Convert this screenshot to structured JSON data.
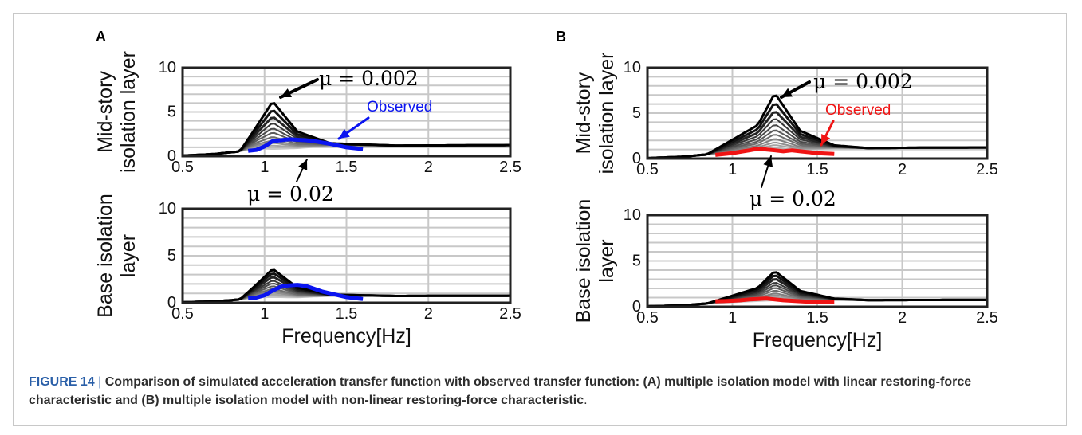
{
  "caption": {
    "label": "FIGURE 14",
    "text": "Comparison of simulated acceleration transfer function with observed transfer function: (A) multiple isolation model with linear restoring-force characteristic and (B) multiple isolation model with non-linear restoring-force characteristic",
    "end": "."
  },
  "colors": {
    "simulated_dark": "#000000",
    "simulated_light": "#c8c8c8",
    "observed_A": "#0a14f0",
    "observed_B": "#f01414",
    "grid": "#c8c8c8"
  },
  "annotations": {
    "mu_high": "μ = 0.002",
    "mu_low": "μ = 0.02",
    "observed": "Observed"
  },
  "chart_data": [
    {
      "id": "A-mid",
      "panel_label": "A",
      "type": "line",
      "ylabel": [
        "Mid-story",
        "isolation layer"
      ],
      "xlabel": "",
      "xlim": [
        0.5,
        2.5
      ],
      "ylim": [
        0,
        10
      ],
      "xticks": [
        "0.5",
        "1",
        "1.5",
        "2",
        "2.5"
      ],
      "yticks": [
        "0",
        "5",
        "10"
      ],
      "grid": true,
      "peak_freq": 1.05,
      "peaks": [
        6.2,
        5.3,
        4.5,
        3.8,
        3.2,
        2.7,
        2.2,
        1.8,
        1.5,
        1.2,
        1.0,
        0.8
      ],
      "tail": [
        0.06,
        0.25,
        0.55,
        0.95,
        1.1,
        1.15,
        1.2,
        1.22,
        1.25
      ],
      "observed": {
        "name": "Observed",
        "x": [
          0.9,
          0.95,
          1.0,
          1.05,
          1.1,
          1.15,
          1.2,
          1.25,
          1.3,
          1.35,
          1.4,
          1.45,
          1.5,
          1.55,
          1.6
        ],
        "y": [
          0.6,
          0.7,
          1.1,
          1.7,
          1.8,
          1.9,
          1.85,
          1.8,
          1.7,
          1.55,
          1.4,
          1.2,
          1.0,
          0.9,
          0.8
        ]
      }
    },
    {
      "id": "A-base",
      "panel_label": "",
      "type": "line",
      "ylabel": [
        "Base isolation",
        "layer"
      ],
      "xlabel": "Frequency[Hz]",
      "xlim": [
        0.5,
        2.5
      ],
      "ylim": [
        0,
        10
      ],
      "xticks": [
        "0.5",
        "1",
        "1.5",
        "2",
        "2.5"
      ],
      "yticks": [
        "0",
        "5",
        "10"
      ],
      "grid": true,
      "peak_freq": 1.05,
      "peaks": [
        3.6,
        3.2,
        2.8,
        2.4,
        2.1,
        1.8,
        1.5,
        1.3,
        1.1,
        0.9,
        0.75,
        0.6
      ],
      "tail": [
        0.05,
        0.15,
        0.35,
        0.55,
        0.65,
        0.7,
        0.72,
        0.74,
        0.75
      ],
      "observed": {
        "name": "Observed",
        "x": [
          0.9,
          0.95,
          1.0,
          1.05,
          1.1,
          1.15,
          1.2,
          1.25,
          1.3,
          1.35,
          1.4,
          1.45,
          1.5,
          1.55,
          1.6
        ],
        "y": [
          0.5,
          0.55,
          0.8,
          1.3,
          1.7,
          1.85,
          1.9,
          1.8,
          1.5,
          1.2,
          1.0,
          0.8,
          0.6,
          0.5,
          0.4
        ]
      }
    },
    {
      "id": "B-mid",
      "panel_label": "B",
      "type": "line",
      "ylabel": [
        "Mid-story",
        "isolation layer"
      ],
      "xlabel": "",
      "xlim": [
        0.5,
        2.5
      ],
      "ylim": [
        0,
        10
      ],
      "xticks": [
        "0.5",
        "1",
        "1.5",
        "2",
        "2.5"
      ],
      "yticks": [
        "0",
        "5",
        "10"
      ],
      "grid": true,
      "peak_freq": 1.25,
      "peaks": [
        7.2,
        6.2,
        5.3,
        4.5,
        3.8,
        3.2,
        2.7,
        2.2,
        1.8,
        1.5,
        1.2,
        1.0
      ],
      "tail": [
        0.05,
        0.2,
        0.45,
        0.8,
        1.0,
        1.1,
        1.15,
        1.2,
        1.22
      ],
      "observed": {
        "name": "Observed",
        "x": [
          0.9,
          0.95,
          1.0,
          1.05,
          1.1,
          1.15,
          1.2,
          1.25,
          1.3,
          1.35,
          1.4,
          1.45,
          1.5,
          1.55,
          1.6
        ],
        "y": [
          0.4,
          0.5,
          0.6,
          0.75,
          0.9,
          1.1,
          1.0,
          0.9,
          0.8,
          0.9,
          0.8,
          0.7,
          0.6,
          0.55,
          0.5
        ]
      }
    },
    {
      "id": "B-base",
      "panel_label": "",
      "type": "line",
      "ylabel": [
        "Base isolation",
        "layer"
      ],
      "xlabel": "Frequency[Hz]",
      "xlim": [
        0.5,
        2.5
      ],
      "ylim": [
        0,
        10
      ],
      "xticks": [
        "0.5",
        "1",
        "1.5",
        "2",
        "2.5"
      ],
      "yticks": [
        "0",
        "5",
        "10"
      ],
      "grid": true,
      "peak_freq": 1.25,
      "peaks": [
        3.9,
        3.5,
        3.1,
        2.7,
        2.4,
        2.1,
        1.8,
        1.5,
        1.3,
        1.1,
        0.9,
        0.7
      ],
      "tail": [
        0.05,
        0.15,
        0.35,
        0.55,
        0.65,
        0.7,
        0.72,
        0.74,
        0.75
      ],
      "observed": {
        "name": "Observed",
        "x": [
          0.9,
          0.95,
          1.0,
          1.05,
          1.1,
          1.15,
          1.2,
          1.25,
          1.3,
          1.35,
          1.4,
          1.45,
          1.5,
          1.55,
          1.6
        ],
        "y": [
          0.6,
          0.62,
          0.65,
          0.7,
          0.8,
          0.85,
          0.9,
          0.8,
          0.7,
          0.65,
          0.6,
          0.55,
          0.5,
          0.5,
          0.5
        ]
      }
    }
  ]
}
